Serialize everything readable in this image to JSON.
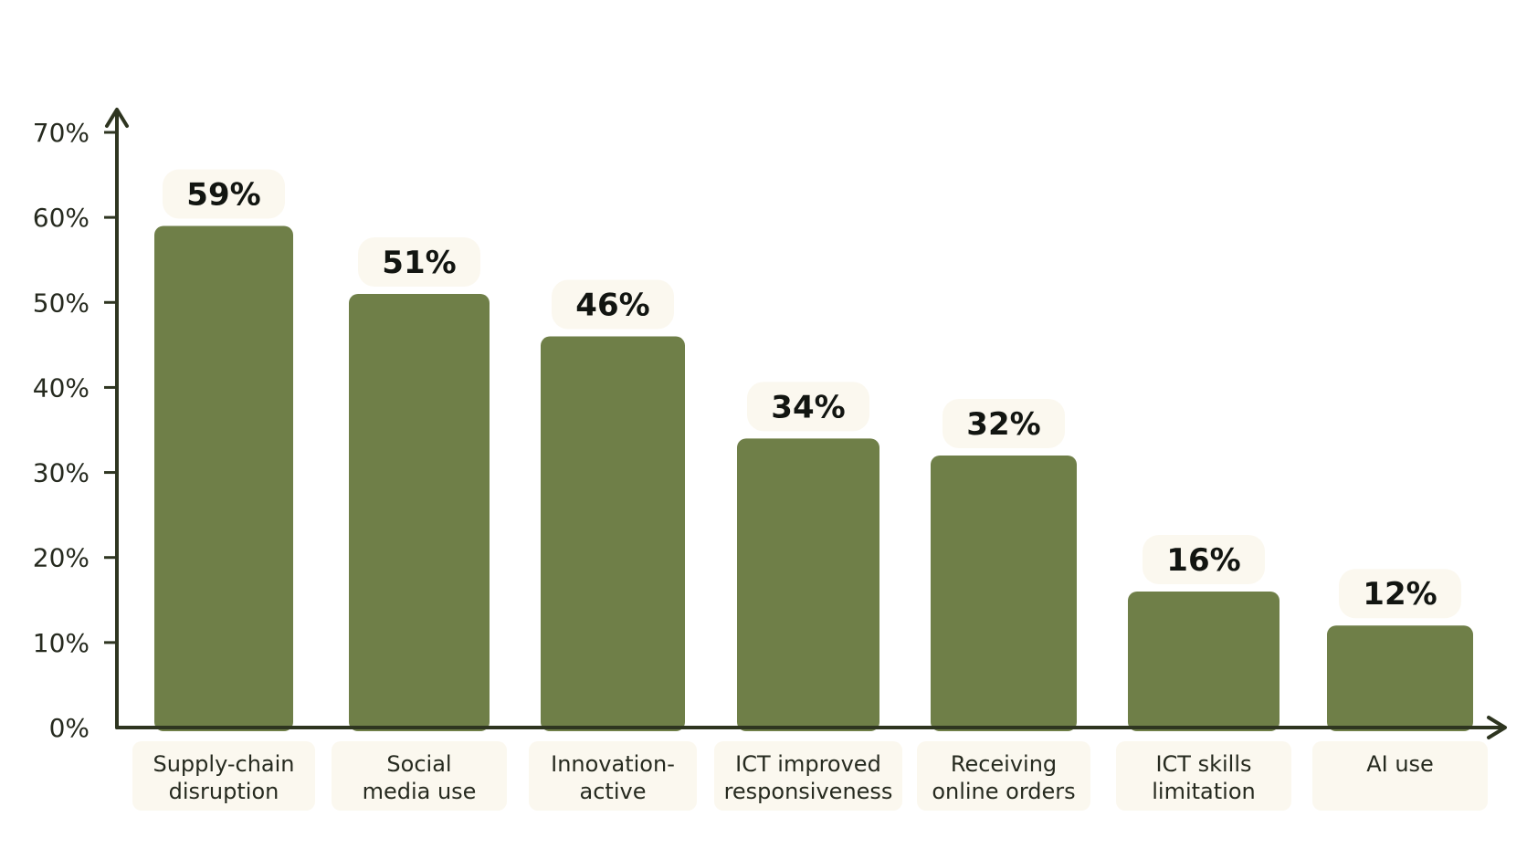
{
  "chart_data": {
    "type": "bar",
    "categories": [
      [
        "Supply-chain",
        "disruption"
      ],
      [
        "Social",
        "media use"
      ],
      [
        "Innovation-",
        "active"
      ],
      [
        "ICT improved",
        "responsiveness"
      ],
      [
        "Receiving",
        "online orders"
      ],
      [
        "ICT skills",
        "limitation"
      ],
      [
        "AI use"
      ]
    ],
    "values": [
      59,
      51,
      46,
      34,
      32,
      16,
      12
    ],
    "value_labels": [
      "59%",
      "51%",
      "46%",
      "34%",
      "32%",
      "16%",
      "12%"
    ],
    "yticks": [
      0,
      10,
      20,
      30,
      40,
      50,
      60,
      70
    ],
    "ytick_labels": [
      "0%",
      "10%",
      "20%",
      "30%",
      "40%",
      "50%",
      "60%",
      "70%"
    ],
    "ylim": [
      0,
      70
    ],
    "grid": false,
    "legend": "none",
    "colors": {
      "bar": "#6f7f48",
      "axis": "#2e3520",
      "label_bg": "#fbf8ef",
      "text": "#262a1f"
    }
  }
}
